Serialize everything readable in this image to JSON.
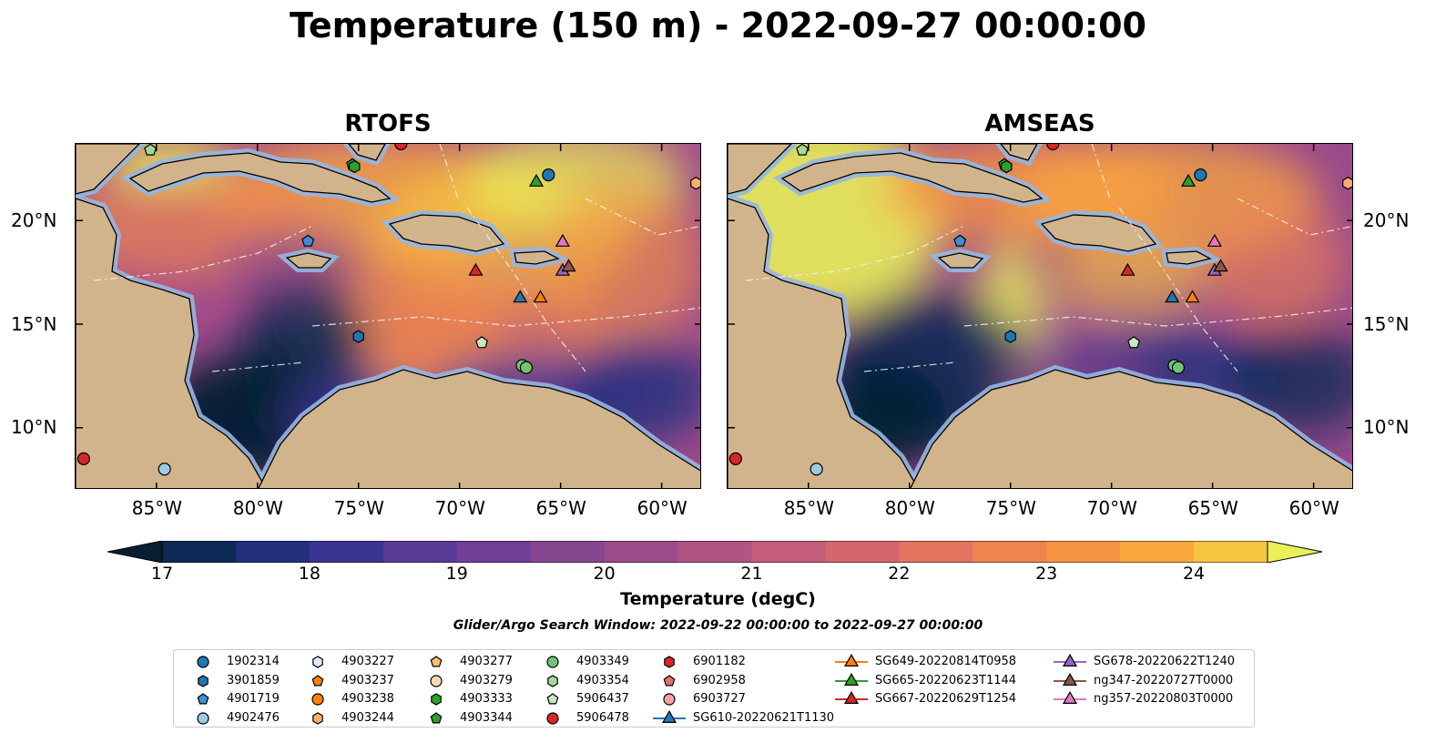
{
  "title": "Temperature (150 m) - 2022-09-27 00:00:00",
  "panels": [
    {
      "title": "RTOFS"
    },
    {
      "title": "AMSEAS"
    }
  ],
  "axes": {
    "x_ticks": [
      "85°W",
      "80°W",
      "75°W",
      "70°W",
      "65°W",
      "60°W"
    ],
    "y_ticks": [
      "20°N",
      "15°N",
      "10°N"
    ]
  },
  "colorbar": {
    "label": "Temperature (degC)",
    "ticks": [
      "17",
      "18",
      "19",
      "20",
      "21",
      "22",
      "23",
      "24"
    ],
    "min": 17,
    "max": 24.5,
    "colors": [
      "#061f32",
      "#0c2a55",
      "#22307e",
      "#3b3493",
      "#583b97",
      "#713f96",
      "#874690",
      "#9b4d89",
      "#b05482",
      "#c45d79",
      "#d4676d",
      "#e37460",
      "#ef8451",
      "#f69443",
      "#f9a83d",
      "#f5c542",
      "#e8f05a"
    ]
  },
  "search_window": "Glider/Argo Search Window: 2022-09-22 00:00:00 to 2022-09-27 00:00:00",
  "legend": [
    {
      "label": "1902314",
      "marker": "circle",
      "color": "#1f77b4"
    },
    {
      "label": "3901859",
      "marker": "hexagon",
      "color": "#1f77b4"
    },
    {
      "label": "4901719",
      "marker": "pentagon",
      "color": "#3d8fd6"
    },
    {
      "label": "4902476",
      "marker": "circle",
      "color": "#9ecae1"
    },
    {
      "label": "4903227",
      "marker": "hexagon",
      "color": "#deebf7"
    },
    {
      "label": "4903237",
      "marker": "pentagon",
      "color": "#ff7f0e"
    },
    {
      "label": "4903238",
      "marker": "circle",
      "color": "#ff7f0e"
    },
    {
      "label": "4903244",
      "marker": "hexagon",
      "color": "#fdae6b"
    },
    {
      "label": "4903277",
      "marker": "pentagon",
      "color": "#fdbf6f"
    },
    {
      "label": "4903279",
      "marker": "circle",
      "color": "#fdd9b5"
    },
    {
      "label": "4903333",
      "marker": "hexagon",
      "color": "#2ca02c"
    },
    {
      "label": "4903344",
      "marker": "pentagon",
      "color": "#2ca02c"
    },
    {
      "label": "4903349",
      "marker": "circle",
      "color": "#74c476"
    },
    {
      "label": "4903354",
      "marker": "hexagon",
      "color": "#a1d99b"
    },
    {
      "label": "5906437",
      "marker": "pentagon",
      "color": "#c7e9c0"
    },
    {
      "label": "5906478",
      "marker": "circle",
      "color": "#d62728"
    },
    {
      "label": "6901182",
      "marker": "hexagon",
      "color": "#d62728"
    },
    {
      "label": "6902958",
      "marker": "pentagon",
      "color": "#e3706f"
    },
    {
      "label": "6903727",
      "marker": "circle",
      "color": "#f4a3a3"
    },
    {
      "label": "SG610-20220621T1130",
      "marker": "triangle-line",
      "color": "#1f77b4"
    },
    {
      "label": "SG649-20220814T0958",
      "marker": "triangle-line",
      "color": "#ff7f0e"
    },
    {
      "label": "SG665-20220623T1144",
      "marker": "triangle-line",
      "color": "#2ca02c"
    },
    {
      "label": "SG667-20220629T1254",
      "marker": "triangle-line",
      "color": "#d62728"
    },
    {
      "label": "SG678-20220622T1240",
      "marker": "triangle-line",
      "color": "#9467bd"
    },
    {
      "label": "ng347-20220727T0000",
      "marker": "triangle-line",
      "color": "#8c564b"
    },
    {
      "label": "ng357-20220803T0000",
      "marker": "triangle-line",
      "color": "#e377c2"
    }
  ],
  "map_extent": {
    "lon": [
      -89,
      -58
    ],
    "lat": [
      7,
      23.7
    ]
  },
  "platforms": [
    {
      "lon": -77.5,
      "lat": 19.0,
      "marker": "pentagon",
      "color": "#3d8fd6"
    },
    {
      "lon": -75.0,
      "lat": 14.4,
      "marker": "hexagon",
      "color": "#1f77b4"
    },
    {
      "lon": -65.6,
      "lat": 22.2,
      "marker": "circle",
      "color": "#1f77b4"
    },
    {
      "lon": -66.2,
      "lat": 21.9,
      "marker": "triangle",
      "color": "#2ca02c"
    },
    {
      "lon": -75.3,
      "lat": 22.7,
      "marker": "pentagon",
      "color": "#2ca02c"
    },
    {
      "lon": -75.2,
      "lat": 22.6,
      "marker": "hexagon",
      "color": "#2ca02c"
    },
    {
      "lon": -85.3,
      "lat": 23.4,
      "marker": "pentagon",
      "color": "#a1d99b"
    },
    {
      "lon": -58.3,
      "lat": 21.8,
      "marker": "hexagon",
      "color": "#fdae6b"
    },
    {
      "lon": -64.9,
      "lat": 19.0,
      "marker": "triangle",
      "color": "#e377c2"
    },
    {
      "lon": -64.9,
      "lat": 17.6,
      "marker": "triangle",
      "color": "#9467bd"
    },
    {
      "lon": -64.6,
      "lat": 17.8,
      "marker": "triangle",
      "color": "#8c564b"
    },
    {
      "lon": -69.2,
      "lat": 17.6,
      "marker": "triangle",
      "color": "#d62728"
    },
    {
      "lon": -67.0,
      "lat": 16.3,
      "marker": "triangle",
      "color": "#1f77b4"
    },
    {
      "lon": -66.0,
      "lat": 16.3,
      "marker": "triangle",
      "color": "#ff7f0e"
    },
    {
      "lon": -68.9,
      "lat": 14.1,
      "marker": "pentagon",
      "color": "#c7e9c0"
    },
    {
      "lon": -66.9,
      "lat": 13.0,
      "marker": "circle",
      "color": "#74c476"
    },
    {
      "lon": -66.7,
      "lat": 12.9,
      "marker": "circle",
      "color": "#74c476"
    },
    {
      "lon": -88.6,
      "lat": 8.5,
      "marker": "circle",
      "color": "#d62728"
    },
    {
      "lon": -84.6,
      "lat": 8.0,
      "marker": "circle",
      "color": "#9ecae1"
    },
    {
      "lon": -72.9,
      "lat": 23.7,
      "marker": "circle",
      "color": "#d62728"
    }
  ]
}
